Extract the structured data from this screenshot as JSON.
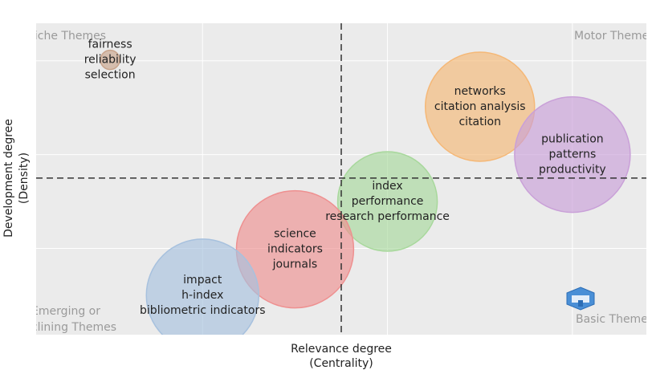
{
  "chart_data": {
    "type": "bubble",
    "xlabel": [
      "Relevance degree",
      "(Centrality)"
    ],
    "ylabel": [
      "Development degree",
      "(Density)"
    ],
    "xlim": [
      0.1,
      3.4
    ],
    "ylim": [
      0.08,
      3.4
    ],
    "xticks": [
      1,
      2,
      3
    ],
    "yticks": [
      1,
      2,
      3
    ],
    "grid": true,
    "x_threshold": 1.75,
    "y_threshold": 1.75,
    "quadrants": {
      "top_left": "Niche Themes",
      "top_right": "Motor Themes",
      "bottom_left": [
        "Emerging or",
        "Declining Themes"
      ],
      "bottom_right": "Basic Themes"
    },
    "points": [
      {
        "labels": [
          "fairness",
          "reliability",
          "selection"
        ],
        "x": 0.5,
        "y": 3.01,
        "size": 12,
        "color": "#c9a48c"
      },
      {
        "labels": [
          "networks",
          "citation analysis",
          "citation"
        ],
        "x": 2.5,
        "y": 2.51,
        "size": 68,
        "color": "#f5b877"
      },
      {
        "labels": [
          "publication",
          "patterns",
          "productivity"
        ],
        "x": 3.0,
        "y": 2.0,
        "size": 72,
        "color": "#c9a0d8"
      },
      {
        "labels": [
          "index",
          "performance",
          "research performance"
        ],
        "x": 2.0,
        "y": 1.5,
        "size": 62,
        "color": "#a8d89c"
      },
      {
        "labels": [
          "science",
          "indicators",
          "journals"
        ],
        "x": 1.5,
        "y": 0.99,
        "size": 73,
        "color": "#ee9090"
      },
      {
        "labels": [
          "impact",
          "h-index",
          "bibliometric indicators"
        ],
        "x": 1.0,
        "y": 0.5,
        "size": 70,
        "color": "#a7c1de"
      }
    ]
  }
}
